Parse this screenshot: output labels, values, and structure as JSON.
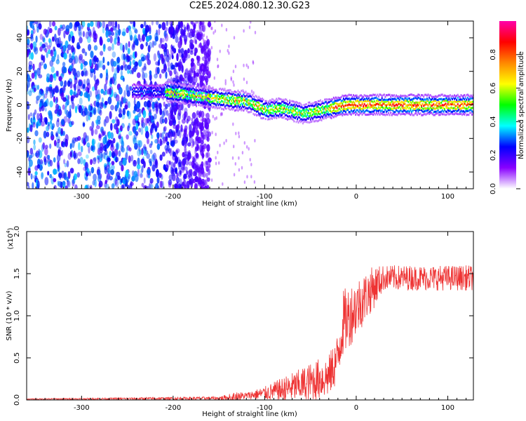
{
  "title": "C2E5.2024.080.12.30.G23",
  "chart_data": [
    {
      "type": "heatmap",
      "xlabel": "Height of straight line (km)",
      "ylabel": "Frequency (Hz)",
      "xlim": [
        -360,
        128
      ],
      "ylim": [
        -50,
        50
      ],
      "xticks": [
        -300,
        -200,
        -100,
        0,
        100
      ],
      "yticks": [
        -40,
        -20,
        0,
        20,
        40
      ],
      "colorbar": {
        "label": "Normalized spectral amplitude",
        "ticks": [
          "0.0",
          "0.2",
          "0.4",
          "0.6",
          "0.8"
        ],
        "range": [
          0,
          1
        ],
        "colors": [
          "#ffffff",
          "#8800ff",
          "#0000ff",
          "#00ffff",
          "#00ff00",
          "#ffff00",
          "#ff8800",
          "#ff0000",
          "#ff00aa"
        ]
      },
      "ridge": {
        "x": [
          -245,
          -210,
          -170,
          -140,
          -120,
          -100,
          -80,
          -60,
          -45,
          -30,
          -10,
          0,
          30,
          60,
          90,
          128
        ],
        "y": [
          8,
          8,
          5,
          3,
          2,
          -3,
          -2,
          -5,
          -4,
          -2,
          0,
          0,
          0,
          0,
          0,
          0
        ]
      }
    },
    {
      "type": "line",
      "xlabel": "Height of straight line (km)",
      "ylabel": "SNR (10 * v/v)",
      "yscale_label": "(x10",
      "yscale_exp": "4",
      "yscale_close": ")",
      "xlim": [
        -360,
        128
      ],
      "ylim": [
        0,
        2.0
      ],
      "xticks": [
        -300,
        -200,
        -100,
        0,
        100
      ],
      "yticks": [
        "0.0",
        "0.5",
        "1.0",
        "1.5",
        "2.0"
      ],
      "color": "#ee3333",
      "envelope": {
        "x": [
          -360,
          -150,
          -130,
          -120,
          -100,
          -80,
          -60,
          -40,
          -30,
          -20,
          -15,
          0,
          20,
          30,
          50,
          100,
          128
        ],
        "mean": [
          0.01,
          0.02,
          0.04,
          0.05,
          0.08,
          0.12,
          0.18,
          0.25,
          0.28,
          0.5,
          0.9,
          1.1,
          1.35,
          1.45,
          1.45,
          1.45,
          1.45
        ],
        "spread": [
          0.005,
          0.02,
          0.06,
          0.04,
          0.08,
          0.15,
          0.2,
          0.25,
          0.25,
          0.3,
          0.4,
          0.35,
          0.25,
          0.15,
          0.15,
          0.15,
          0.15
        ]
      }
    }
  ]
}
